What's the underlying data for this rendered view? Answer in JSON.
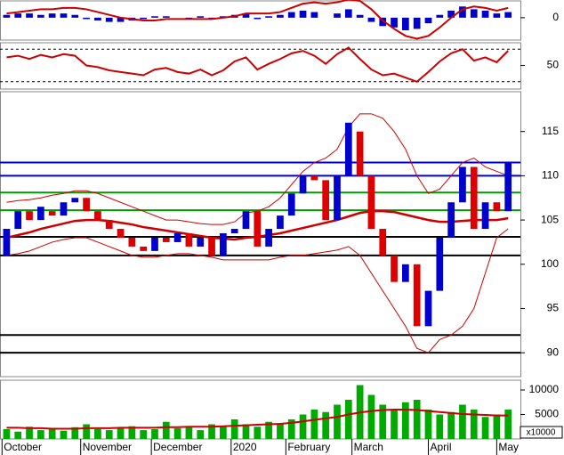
{
  "chart_data": [
    {
      "type": "macd",
      "ylim": [
        -1.6,
        1.2
      ],
      "yticks": [
        0
      ],
      "bar_color": "#0000cc",
      "line_color": "#cc0000",
      "histogram": [
        0.2,
        0.3,
        0.3,
        0.2,
        0.3,
        0.3,
        0.2,
        -0.1,
        -0.2,
        -0.3,
        -0.3,
        -0.2,
        -0.1,
        0.1,
        0.1,
        0,
        -0.1,
        0.1,
        -0.1,
        0.1,
        0.2,
        0.3,
        -0.1,
        0.1,
        0.2,
        0.4,
        0.5,
        0.4,
        0,
        0.3,
        0.6,
        0.2,
        -0.3,
        -0.6,
        -0.7,
        -0.9,
        -0.8,
        -0.4,
        0.2,
        0.5,
        0.8,
        0.6,
        0.5,
        0.3,
        0.4
      ],
      "line": [
        0.3,
        0.4,
        0.5,
        0.6,
        0.6,
        0.7,
        0.7,
        0.6,
        0.4,
        0.2,
        0,
        -0.1,
        -0.2,
        -0.2,
        -0.1,
        -0.1,
        -0.1,
        -0.1,
        -0.1,
        0,
        0.1,
        0.3,
        0.3,
        0.3,
        0.4,
        0.7,
        1,
        1.1,
        1,
        1.1,
        1.3,
        1.2,
        0.6,
        -0.2,
        -0.8,
        -1.3,
        -1.5,
        -1.3,
        -0.7,
        0,
        0.6,
        0.8,
        0.7,
        0.5,
        0.7
      ]
    },
    {
      "type": "rsi",
      "ylim": [
        21,
        78
      ],
      "yticks": [
        50
      ],
      "levels": [
        30,
        70
      ],
      "line_color": "#cc0000",
      "values": [
        60,
        62,
        58,
        63,
        60,
        64,
        62,
        50,
        48,
        44,
        42,
        40,
        38,
        45,
        47,
        42,
        40,
        45,
        38,
        44,
        55,
        60,
        45,
        52,
        58,
        65,
        68,
        62,
        52,
        64,
        72,
        58,
        45,
        38,
        40,
        35,
        30,
        42,
        55,
        65,
        70,
        56,
        60,
        54,
        68
      ]
    },
    {
      "type": "candlestick",
      "ylim": [
        87.3,
        119.5
      ],
      "yticks": [
        90,
        95,
        100,
        105,
        110,
        115
      ],
      "up_color": "#0000cc",
      "down_color": "#dd0000",
      "ma_color": "#cc0000",
      "band_color": "#cc0000",
      "levels": [
        {
          "value": 111.5,
          "color": "#0000cc"
        },
        {
          "value": 110,
          "color": "#0000cc"
        },
        {
          "value": 108.1,
          "color": "#009900"
        },
        {
          "value": 106.1,
          "color": "#009900"
        },
        {
          "value": 103.1,
          "color": "#000000"
        },
        {
          "value": 101,
          "color": "#000000"
        },
        {
          "value": 92,
          "color": "#000000"
        },
        {
          "value": 90,
          "color": "#000000"
        }
      ],
      "open": [
        101,
        104,
        106,
        105,
        106,
        105.5,
        107,
        107.5,
        106,
        105,
        104,
        103,
        102,
        101.5,
        103,
        102.5,
        103.5,
        102,
        103,
        101,
        103.5,
        104,
        106,
        102,
        104,
        105.5,
        108,
        110,
        109.5,
        105,
        110,
        115,
        110,
        104,
        101,
        98,
        100,
        93,
        97,
        103,
        107,
        111,
        104,
        107,
        106
      ],
      "close": [
        104,
        106,
        105,
        106.5,
        105.5,
        107,
        107.5,
        106,
        105,
        104,
        103,
        102,
        101.5,
        103,
        102.5,
        103.5,
        102,
        103,
        101,
        103.5,
        104,
        106,
        102,
        104,
        105.5,
        108,
        110,
        109.5,
        105,
        110,
        116,
        110,
        104,
        101,
        98,
        100,
        93,
        97,
        103,
        107,
        111,
        104,
        107,
        106,
        111.5
      ],
      "ma": [
        103,
        103.3,
        103.6,
        104,
        104.3,
        104.6,
        104.9,
        105,
        105,
        104.9,
        104.7,
        104.5,
        104.2,
        104,
        103.8,
        103.6,
        103.4,
        103.2,
        103,
        102.9,
        102.8,
        103,
        103.1,
        103.3,
        103.5,
        103.8,
        104.1,
        104.4,
        104.7,
        105,
        105.4,
        105.8,
        106,
        106,
        105.9,
        105.6,
        105.3,
        105,
        104.8,
        104.8,
        104.9,
        105,
        105,
        105,
        105.2
      ],
      "upper_band": [
        107,
        107.2,
        107.3,
        107.5,
        107.8,
        108,
        108.3,
        108.3,
        108,
        107.5,
        107,
        106.5,
        106,
        105.5,
        105,
        105,
        104.8,
        104.6,
        104.5,
        104.5,
        104.8,
        105.8,
        106,
        106.5,
        107.5,
        109,
        110.5,
        111.5,
        112,
        113,
        115.5,
        117,
        117,
        116.5,
        115,
        113,
        110,
        108,
        108.5,
        110,
        111.5,
        112,
        111,
        110.5,
        110
      ],
      "lower_band": [
        101,
        101.2,
        101.5,
        102,
        102.5,
        102.8,
        103,
        103,
        102.5,
        102,
        101.5,
        101,
        100.8,
        100.8,
        101,
        101.2,
        101.2,
        101,
        100.8,
        100.5,
        100.5,
        100.5,
        100.5,
        100.5,
        100.8,
        101,
        101,
        101.2,
        101.4,
        101.6,
        102,
        101,
        99,
        97,
        95,
        93,
        90.5,
        90,
        91.5,
        92,
        93,
        95,
        99,
        103,
        104
      ]
    },
    {
      "type": "bar",
      "ylim": [
        0,
        12000
      ],
      "yticks": [
        5000,
        10000
      ],
      "unit_label": "x10000",
      "color": "#00aa00",
      "ma_color": "#cc0000",
      "xlim": [
        -0.5,
        45
      ],
      "xticks": [
        {
          "value": -0.4,
          "label": "October"
        },
        {
          "value": 6.5,
          "label": "November"
        },
        {
          "value": 12.7,
          "label": "December"
        },
        {
          "value": 19.7,
          "label": "2020"
        },
        {
          "value": 24.5,
          "label": "February"
        },
        {
          "value": 30.3,
          "label": "March"
        },
        {
          "value": 37,
          "label": "April"
        },
        {
          "value": 43,
          "label": "May"
        }
      ],
      "values": [
        2000,
        1500,
        2500,
        1800,
        2200,
        1700,
        2400,
        3000,
        2000,
        1800,
        2200,
        2600,
        1800,
        2000,
        3500,
        2200,
        2500,
        1800,
        3000,
        2500,
        4000,
        3000,
        2500,
        3500,
        3000,
        4000,
        5000,
        6000,
        5500,
        7000,
        8000,
        11000,
        9000,
        7000,
        6000,
        7500,
        8000,
        6000,
        5000,
        5500,
        7000,
        6000,
        4500,
        5000,
        6000
      ],
      "ma": [
        2300,
        2300,
        2200,
        2200,
        2100,
        2100,
        2100,
        2200,
        2200,
        2200,
        2300,
        2300,
        2300,
        2300,
        2400,
        2400,
        2500,
        2500,
        2500,
        2600,
        2700,
        2800,
        2900,
        3000,
        3100,
        3300,
        3600,
        3900,
        4200,
        4500,
        5000,
        5400,
        5700,
        5900,
        6000,
        6000,
        5900,
        5700,
        5500,
        5300,
        5100,
        5000,
        4900,
        4800,
        4800
      ]
    }
  ]
}
